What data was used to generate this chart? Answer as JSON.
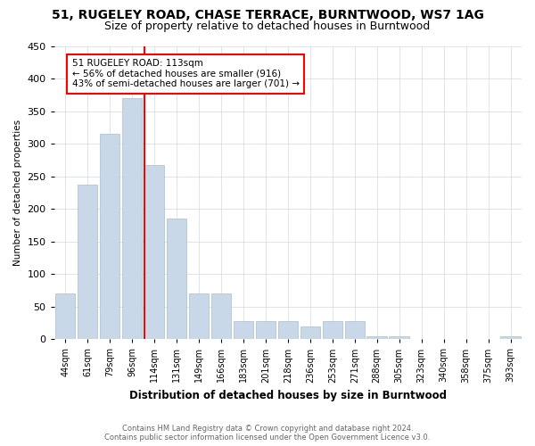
{
  "title1": "51, RUGELEY ROAD, CHASE TERRACE, BURNTWOOD, WS7 1AG",
  "title2": "Size of property relative to detached houses in Burntwood",
  "xlabel": "Distribution of detached houses by size in Burntwood",
  "ylabel": "Number of detached properties",
  "categories": [
    "44sqm",
    "61sqm",
    "79sqm",
    "96sqm",
    "114sqm",
    "131sqm",
    "149sqm",
    "166sqm",
    "183sqm",
    "201sqm",
    "218sqm",
    "236sqm",
    "253sqm",
    "271sqm",
    "288sqm",
    "305sqm",
    "323sqm",
    "340sqm",
    "358sqm",
    "375sqm",
    "393sqm"
  ],
  "values": [
    70,
    237,
    315,
    370,
    267,
    185,
    70,
    70,
    28,
    28,
    28,
    20,
    28,
    28,
    5,
    5,
    0,
    0,
    0,
    0,
    5
  ],
  "bar_color": "#c8d8e8",
  "bar_edge_color": "#a8bece",
  "annotation_text_line1": "51 RUGELEY ROAD: 113sqm",
  "annotation_text_line2": "← 56% of detached houses are smaller (916)",
  "annotation_text_line3": "43% of semi-detached houses are larger (701) →",
  "ylim_max": 450,
  "footer_line1": "Contains HM Land Registry data © Crown copyright and database right 2024.",
  "footer_line2": "Contains public sector information licensed under the Open Government Licence v3.0.",
  "bg_color": "#ffffff",
  "grid_color": "#d0d8e8",
  "title1_fontsize": 10,
  "title2_fontsize": 9
}
